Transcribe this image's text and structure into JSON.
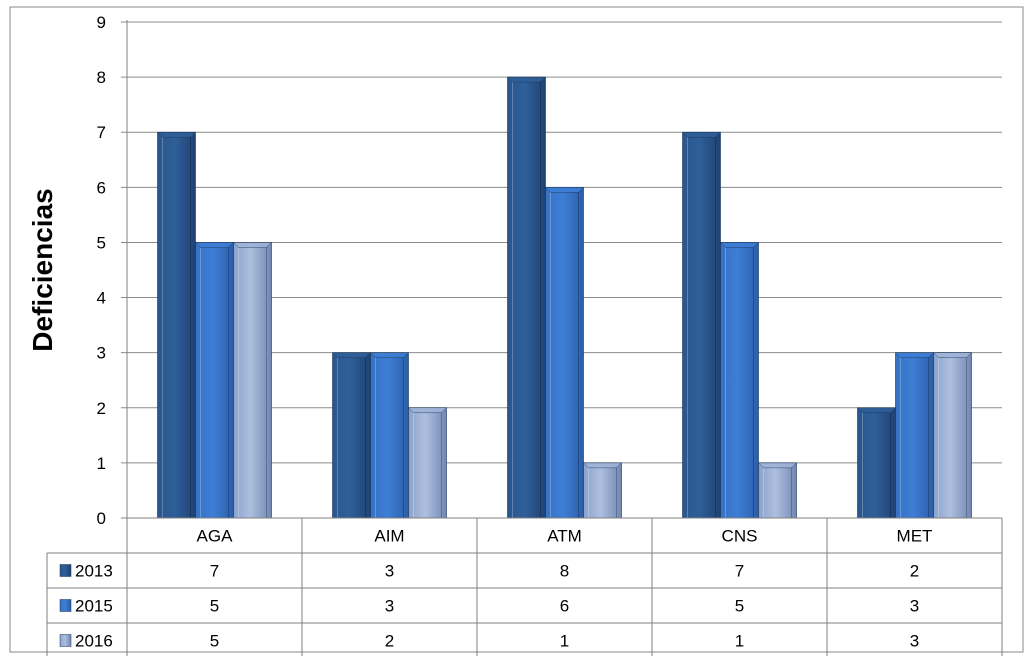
{
  "chart_data": {
    "type": "bar",
    "title": "",
    "xlabel": "",
    "ylabel": "Deficiencias",
    "categories": [
      "AGA",
      "AIM",
      "ATM",
      "CNS",
      "MET"
    ],
    "series": [
      {
        "name": "2013",
        "values": [
          7,
          3,
          8,
          7,
          2
        ],
        "color": "#2f5f99"
      },
      {
        "name": "2015",
        "values": [
          5,
          3,
          6,
          5,
          3
        ],
        "color": "#3f7ed6"
      },
      {
        "name": "2016",
        "values": [
          5,
          2,
          1,
          1,
          3
        ],
        "color": "#9fb4d8"
      }
    ],
    "ylim": [
      0,
      9
    ],
    "yticks": [
      0,
      1,
      2,
      3,
      4,
      5,
      6,
      7,
      8,
      9
    ],
    "grid": true,
    "legend": "data table below chart",
    "data_table": true,
    "style": "3d-bars"
  },
  "colors": {
    "grid": "#8c8c8c",
    "axis": "#808080",
    "table_border": "#808080",
    "frame": "#8a8a8a"
  }
}
